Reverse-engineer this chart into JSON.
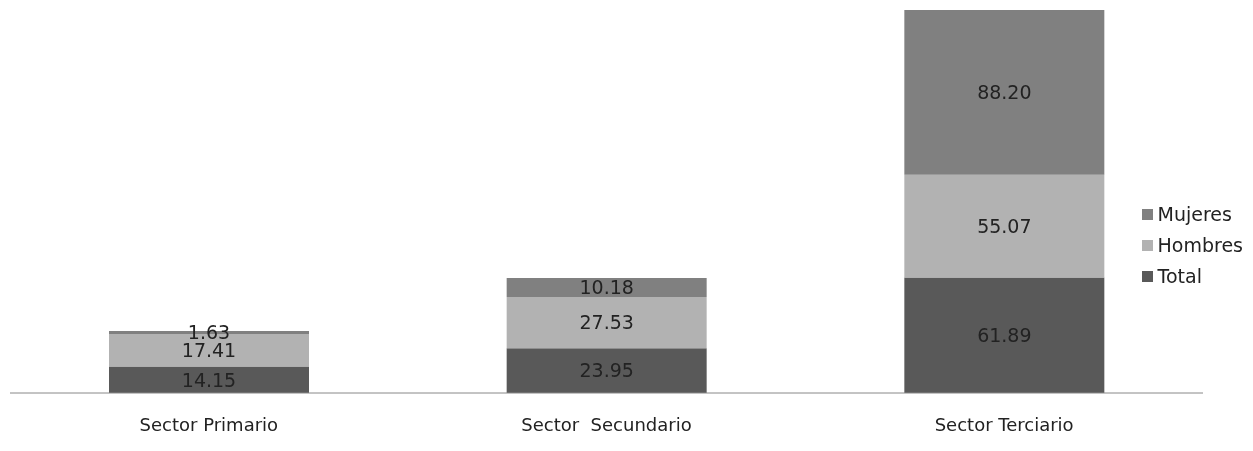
{
  "chart_data": {
    "type": "bar",
    "stacked": true,
    "legend": "right",
    "grid": false,
    "categories": [
      "Sector Primario",
      "Sector  Secundario",
      "Sector Terciario"
    ],
    "series": [
      {
        "name": "Total",
        "color": "#595959",
        "values": [
          14.15,
          23.95,
          61.89
        ],
        "value_labels": [
          "14.15",
          "23.95",
          "61.89"
        ]
      },
      {
        "name": "Hombres",
        "color": "#b2b2b2",
        "values": [
          17.41,
          27.53,
          55.07
        ],
        "value_labels": [
          "17.41",
          "27.53",
          "55.07"
        ]
      },
      {
        "name": "Mujeres",
        "color": "#808080",
        "values": [
          1.63,
          10.18,
          88.2
        ],
        "value_labels": [
          "1.63",
          "10.18",
          "88.20"
        ]
      }
    ]
  }
}
